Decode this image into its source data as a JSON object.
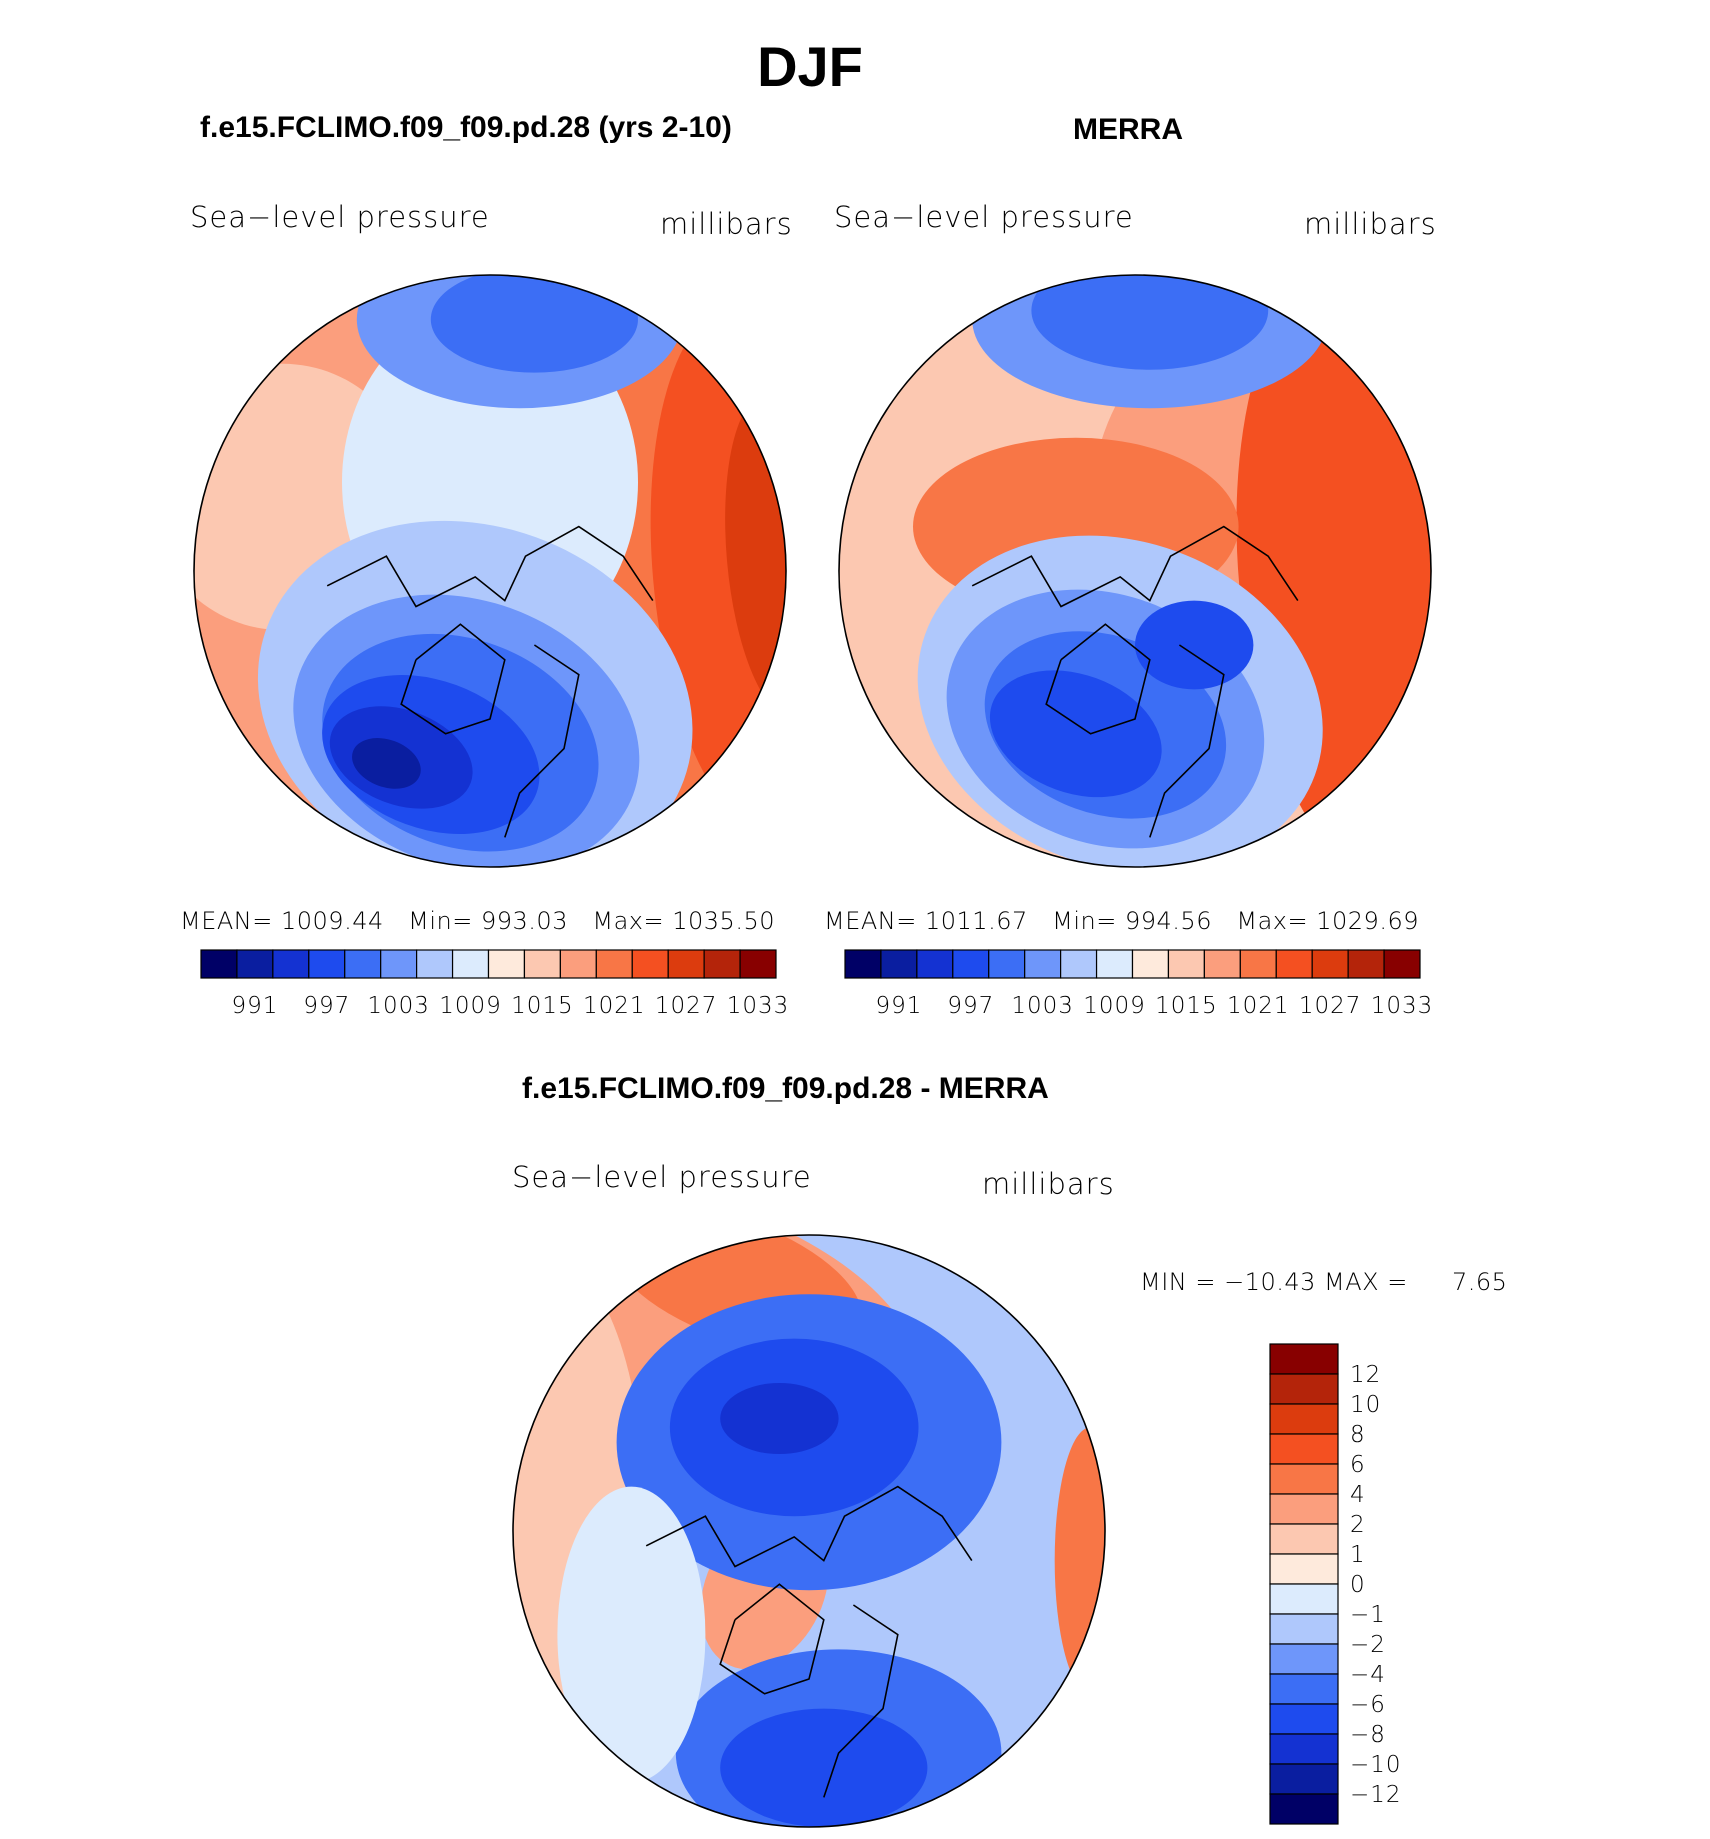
{
  "figure": {
    "season": "DJF",
    "panels": [
      {
        "title": "f.e15.FCLIMO.f09_f09.pd.28 (yrs 2-10)",
        "field": "Sea−level pressure",
        "units": "millibars",
        "stats": {
          "mean_label": "MEAN=",
          "mean": "1009.44",
          "min_label": "Min=",
          "min": "993.03",
          "max_label": "Max=",
          "max": "1035.50"
        }
      },
      {
        "title": "MERRA",
        "field": "Sea−level pressure",
        "units": "millibars",
        "stats": {
          "mean_label": "MEAN=",
          "mean": "1011.67",
          "min_label": "Min=",
          "min": "994.56",
          "max_label": "Max=",
          "max": "1029.69"
        }
      },
      {
        "title": "f.e15.FCLIMO.f09_f09.pd.28 - MERRA",
        "field": "Sea−level pressure",
        "units": "millibars",
        "stats": {
          "minmax_text": "MIN = −10.43 MAX =",
          "max": "7.65"
        }
      }
    ]
  },
  "chart_data": [
    {
      "type": "heatmap",
      "title": "f.e15.FCLIMO.f09_f09.pd.28 (yrs 2-10)",
      "projection": "north polar stereographic",
      "variable": "Sea-level pressure",
      "units": "millibars",
      "mean": 1009.44,
      "min": 993.03,
      "max": 1035.5,
      "contour_levels": [
        991,
        994,
        997,
        1000,
        1003,
        1006,
        1009,
        1012,
        1015,
        1018,
        1021,
        1024,
        1027,
        1030,
        1033
      ],
      "colorbar_tick_labels": [
        "991",
        "997",
        "1003",
        "1009",
        "1015",
        "1021",
        "1027",
        "1033"
      ]
    },
    {
      "type": "heatmap",
      "title": "MERRA",
      "projection": "north polar stereographic",
      "variable": "Sea-level pressure",
      "units": "millibars",
      "mean": 1011.67,
      "min": 994.56,
      "max": 1029.69,
      "contour_levels": [
        991,
        994,
        997,
        1000,
        1003,
        1006,
        1009,
        1012,
        1015,
        1018,
        1021,
        1024,
        1027,
        1030,
        1033
      ],
      "colorbar_tick_labels": [
        "991",
        "997",
        "1003",
        "1009",
        "1015",
        "1021",
        "1027",
        "1033"
      ]
    },
    {
      "type": "heatmap",
      "title": "f.e15.FCLIMO.f09_f09.pd.28 - MERRA",
      "projection": "north polar stereographic",
      "variable": "Sea-level pressure",
      "units": "millibars",
      "min": -10.43,
      "max": 7.65,
      "contour_levels": [
        -12,
        -10,
        -8,
        -6,
        -4,
        -2,
        -1,
        0,
        1,
        2,
        4,
        6,
        8,
        10,
        12
      ],
      "colorbar_tick_labels": [
        "12",
        "10",
        "8",
        "6",
        "4",
        "2",
        "1",
        "0",
        "−1",
        "−2",
        "−4",
        "−6",
        "−8",
        "−10",
        "−12"
      ]
    }
  ],
  "palette": [
    "#000066",
    "#0a1ea0",
    "#1432d2",
    "#1e4bee",
    "#3c6ef5",
    "#6e96fa",
    "#afc8fc",
    "#dcebfd",
    "#feeadc",
    "#fcc8b1",
    "#fb9e7d",
    "#f87646",
    "#f45021",
    "#dc3c0e",
    "#b4240a",
    "#880000"
  ],
  "colors": {
    "background": "#ffffff",
    "outline": "#000000"
  }
}
